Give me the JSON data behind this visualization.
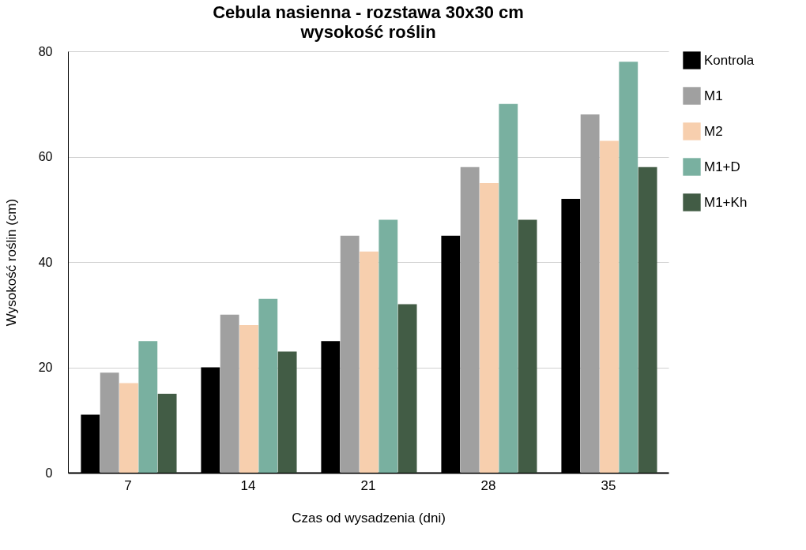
{
  "chart_data": {
    "type": "bar",
    "title": "Cebula nasienna - rozstawa 30x30 cm",
    "subtitle": "wysokość roślin",
    "xlabel": "Czas od wysadzenia (dni)",
    "ylabel": "Wysokość roślin (cm)",
    "categories": [
      "7",
      "14",
      "21",
      "28",
      "35"
    ],
    "series": [
      {
        "name": "Kontrola",
        "color": "#000000",
        "values": [
          11,
          20,
          25,
          45,
          52
        ]
      },
      {
        "name": "M1",
        "color": "#a0a0a0",
        "values": [
          19,
          30,
          45,
          58,
          68
        ]
      },
      {
        "name": "M2",
        "color": "#f7cfae",
        "values": [
          17,
          28,
          42,
          55,
          63
        ]
      },
      {
        "name": "M1+D",
        "color": "#79b0a0",
        "values": [
          25,
          33,
          48,
          70,
          78
        ]
      },
      {
        "name": "M1+Kh",
        "color": "#425c45",
        "values": [
          15,
          23,
          32,
          48,
          58
        ]
      }
    ],
    "ylim": [
      0,
      80
    ],
    "yticks": [
      0,
      20,
      40,
      60,
      80
    ],
    "grid": "y",
    "legend": "right"
  }
}
